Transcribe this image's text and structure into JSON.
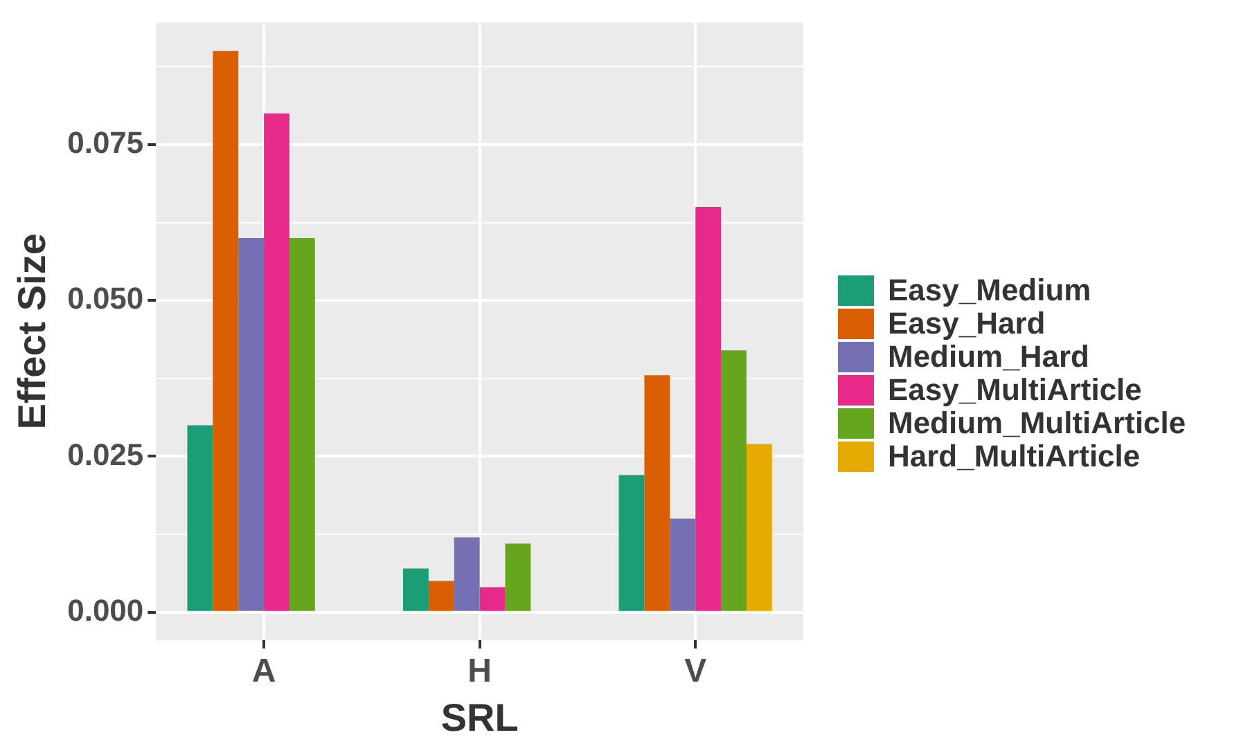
{
  "chart_data": {
    "type": "bar",
    "xlabel": "SRL",
    "ylabel": "Effect Size",
    "categories": [
      "A",
      "H",
      "V"
    ],
    "series": [
      {
        "name": "Easy_Medium",
        "color": "#1b9e77",
        "values": [
          0.03,
          0.007,
          0.022
        ]
      },
      {
        "name": "Easy_Hard",
        "color": "#d95f02",
        "values": [
          0.09,
          0.005,
          0.038
        ]
      },
      {
        "name": "Medium_Hard",
        "color": "#7570b3",
        "values": [
          0.06,
          0.012,
          0.015
        ]
      },
      {
        "name": "Easy_MultiArticle",
        "color": "#e7298a",
        "values": [
          0.08,
          0.004,
          0.065
        ]
      },
      {
        "name": "Medium_MultiArticle",
        "color": "#66a61e",
        "values": [
          0.06,
          0.011,
          0.042
        ]
      },
      {
        "name": "Hard_MultiArticle",
        "color": "#e6ab02",
        "values": [
          null,
          null,
          0.027
        ]
      }
    ],
    "ylim": [
      -0.0045,
      0.0946
    ],
    "yticks": [
      {
        "value": 0,
        "label": "0.000"
      },
      {
        "value": 0.0125,
        "label": null
      },
      {
        "value": 0.025,
        "label": "0.025"
      },
      {
        "value": 0.0375,
        "label": null
      },
      {
        "value": 0.05,
        "label": "0.050"
      },
      {
        "value": 0.0625,
        "label": null
      },
      {
        "value": 0.075,
        "label": "0.075"
      },
      {
        "value": 0.0875,
        "label": null
      }
    ],
    "grid": true,
    "legend": "right"
  }
}
